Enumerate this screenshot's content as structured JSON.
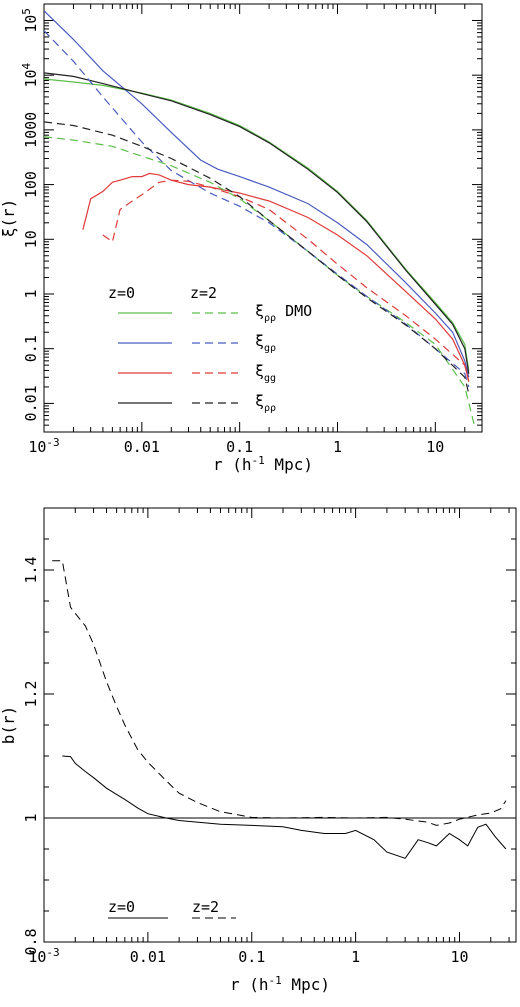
{
  "chart_data": [
    {
      "type": "line",
      "xlabel": "r (h⁻¹ Mpc)",
      "ylabel": "ξ(r)",
      "xscale": "log",
      "yscale": "log",
      "xlim": [
        0.001,
        30
      ],
      "ylim": [
        0.003,
        200000
      ],
      "x_ticks": [
        "10⁻³",
        "0.01",
        "0.1",
        "1",
        "10"
      ],
      "y_ticks": [
        "0.01",
        "0.1",
        "1",
        "10",
        "100",
        "1000",
        "10⁴",
        "10⁵"
      ],
      "legend": {
        "placement": "bottom-left",
        "column_headers": [
          "z=0",
          "z=2"
        ],
        "entries": [
          {
            "label": "ξ",
            "sub": "ρρ",
            "suffix": " DMO",
            "color": "#5cbf4a"
          },
          {
            "label": "ξ",
            "sub": "gρ",
            "suffix": "",
            "color": "#4a5cc0"
          },
          {
            "label": "ξ",
            "sub": "gg",
            "suffix": "",
            "color": "#e03a3a"
          },
          {
            "label": "ξ",
            "sub": "ρρ",
            "suffix": "",
            "color": "#222222"
          }
        ]
      },
      "series": [
        {
          "color": "#5cbf4a",
          "dash": false,
          "points": [
            [
              0.001,
              8500
            ],
            [
              0.002,
              7500
            ],
            [
              0.004,
              6500
            ],
            [
              0.01,
              4700
            ],
            [
              0.02,
              3500
            ],
            [
              0.05,
              2000
            ],
            [
              0.1,
              1200
            ],
            [
              0.2,
              600
            ],
            [
              0.5,
              200
            ],
            [
              1,
              75
            ],
            [
              2,
              22
            ],
            [
              5,
              2.8
            ],
            [
              10,
              0.7
            ],
            [
              15,
              0.3
            ],
            [
              20,
              0.12
            ],
            [
              22,
              0.04
            ]
          ]
        },
        {
          "color": "#4a5cc0",
          "dash": false,
          "points": [
            [
              0.001,
              150000
            ],
            [
              0.002,
              45000
            ],
            [
              0.004,
              12000
            ],
            [
              0.01,
              3000
            ],
            [
              0.02,
              900
            ],
            [
              0.04,
              280
            ],
            [
              0.06,
              190
            ],
            [
              0.1,
              140
            ],
            [
              0.2,
              90
            ],
            [
              0.5,
              45
            ],
            [
              1,
              20
            ],
            [
              2,
              8
            ],
            [
              5,
              1.6
            ],
            [
              10,
              0.45
            ],
            [
              15,
              0.2
            ],
            [
              20,
              0.06
            ],
            [
              22,
              0.03
            ]
          ]
        },
        {
          "color": "#e03a3a",
          "dash": false,
          "points": [
            [
              0.0025,
              15
            ],
            [
              0.003,
              55
            ],
            [
              0.004,
              75
            ],
            [
              0.005,
              110
            ],
            [
              0.006,
              120
            ],
            [
              0.008,
              140
            ],
            [
              0.01,
              140
            ],
            [
              0.012,
              160
            ],
            [
              0.015,
              150
            ],
            [
              0.02,
              120
            ],
            [
              0.03,
              100
            ],
            [
              0.05,
              90
            ],
            [
              0.1,
              70
            ],
            [
              0.2,
              50
            ],
            [
              0.5,
              25
            ],
            [
              1,
              12
            ],
            [
              2,
              5
            ],
            [
              5,
              1.1
            ],
            [
              10,
              0.35
            ],
            [
              15,
              0.15
            ],
            [
              20,
              0.05
            ],
            [
              22,
              0.025
            ]
          ]
        },
        {
          "color": "#222222",
          "dash": false,
          "points": [
            [
              0.001,
              11000
            ],
            [
              0.002,
              9500
            ],
            [
              0.004,
              7000
            ],
            [
              0.01,
              4600
            ],
            [
              0.02,
              3400
            ],
            [
              0.05,
              1900
            ],
            [
              0.1,
              1150
            ],
            [
              0.2,
              580
            ],
            [
              0.5,
              190
            ],
            [
              1,
              72
            ],
            [
              2,
              21
            ],
            [
              5,
              2.7
            ],
            [
              10,
              0.65
            ],
            [
              15,
              0.28
            ],
            [
              20,
              0.1
            ],
            [
              22,
              0.035
            ]
          ]
        },
        {
          "color": "#5cbf4a",
          "dash": true,
          "points": [
            [
              0.001,
              750
            ],
            [
              0.002,
              650
            ],
            [
              0.005,
              500
            ],
            [
              0.01,
              330
            ],
            [
              0.02,
              220
            ],
            [
              0.05,
              110
            ],
            [
              0.1,
              55
            ],
            [
              0.2,
              22
            ],
            [
              0.5,
              6
            ],
            [
              1,
              2.2
            ],
            [
              2,
              0.9
            ],
            [
              5,
              0.3
            ],
            [
              10,
              0.12
            ],
            [
              20,
              0.02
            ],
            [
              25,
              0.004
            ]
          ]
        },
        {
          "color": "#4a5cc0",
          "dash": true,
          "points": [
            [
              0.001,
              65000
            ],
            [
              0.002,
              18000
            ],
            [
              0.004,
              4000
            ],
            [
              0.01,
              600
            ],
            [
              0.02,
              180
            ],
            [
              0.05,
              70
            ],
            [
              0.1,
              40
            ],
            [
              0.2,
              20
            ],
            [
              0.5,
              6
            ],
            [
              1,
              2.3
            ],
            [
              2,
              0.9
            ],
            [
              5,
              0.28
            ],
            [
              10,
              0.1
            ],
            [
              20,
              0.035
            ],
            [
              22,
              0.02
            ]
          ]
        },
        {
          "color": "#e03a3a",
          "dash": true,
          "points": [
            [
              0.004,
              12
            ],
            [
              0.005,
              9
            ],
            [
              0.006,
              35
            ],
            [
              0.008,
              50
            ],
            [
              0.01,
              65
            ],
            [
              0.015,
              110
            ],
            [
              0.02,
              120
            ],
            [
              0.03,
              115
            ],
            [
              0.05,
              90
            ],
            [
              0.1,
              60
            ],
            [
              0.2,
              35
            ],
            [
              0.5,
              10
            ],
            [
              1,
              3.5
            ],
            [
              2,
              1.3
            ],
            [
              5,
              0.4
            ],
            [
              10,
              0.15
            ],
            [
              20,
              0.05
            ],
            [
              22,
              0.025
            ]
          ]
        },
        {
          "color": "#222222",
          "dash": true,
          "points": [
            [
              0.001,
              1400
            ],
            [
              0.002,
              1200
            ],
            [
              0.005,
              800
            ],
            [
              0.01,
              500
            ],
            [
              0.02,
              300
            ],
            [
              0.05,
              130
            ],
            [
              0.1,
              60
            ],
            [
              0.2,
              22
            ],
            [
              0.5,
              6
            ],
            [
              1,
              2.2
            ],
            [
              2,
              0.85
            ],
            [
              5,
              0.27
            ],
            [
              10,
              0.1
            ],
            [
              20,
              0.03
            ],
            [
              22,
              0.015
            ]
          ]
        }
      ]
    },
    {
      "type": "line",
      "xlabel": "r (h⁻¹ Mpc)",
      "ylabel": "b(r)",
      "xscale": "log",
      "xlim": [
        0.001,
        35
      ],
      "ylim": [
        0.8,
        1.5
      ],
      "x_ticks": [
        "10⁻³",
        "0.01",
        "0.1",
        "1",
        "10"
      ],
      "y_ticks": [
        "0.8",
        "1",
        "1.2",
        "1.4"
      ],
      "reference_line": 1,
      "legend": {
        "placement": "bottom-left",
        "entries": [
          {
            "label": "z=0",
            "dash": false
          },
          {
            "label": "z=2",
            "dash": true
          }
        ]
      },
      "series": [
        {
          "color": "#000000",
          "dash": false,
          "points": [
            [
              0.0015,
              1.1
            ],
            [
              0.0018,
              1.099
            ],
            [
              0.002,
              1.088
            ],
            [
              0.0025,
              1.075
            ],
            [
              0.003,
              1.065
            ],
            [
              0.004,
              1.048
            ],
            [
              0.005,
              1.038
            ],
            [
              0.006,
              1.03
            ],
            [
              0.008,
              1.016
            ],
            [
              0.01,
              1.007
            ],
            [
              0.015,
              1.0
            ],
            [
              0.02,
              0.996
            ],
            [
              0.05,
              0.99
            ],
            [
              0.1,
              0.988
            ],
            [
              0.2,
              0.986
            ],
            [
              0.3,
              0.98
            ],
            [
              0.5,
              0.975
            ],
            [
              0.8,
              0.975
            ],
            [
              1,
              0.98
            ],
            [
              1.5,
              0.965
            ],
            [
              2,
              0.945
            ],
            [
              3,
              0.935
            ],
            [
              4,
              0.965
            ],
            [
              5,
              0.96
            ],
            [
              6,
              0.955
            ],
            [
              8,
              0.975
            ],
            [
              10,
              0.965
            ],
            [
              12,
              0.955
            ],
            [
              15,
              0.985
            ],
            [
              18,
              0.99
            ],
            [
              22,
              0.97
            ],
            [
              28,
              0.95
            ]
          ]
        },
        {
          "color": "#000000",
          "dash": true,
          "points": [
            [
              0.0012,
              1.415
            ],
            [
              0.0015,
              1.415
            ],
            [
              0.0018,
              1.34
            ],
            [
              0.002,
              1.33
            ],
            [
              0.0025,
              1.31
            ],
            [
              0.003,
              1.28
            ],
            [
              0.004,
              1.22
            ],
            [
              0.005,
              1.18
            ],
            [
              0.006,
              1.15
            ],
            [
              0.008,
              1.11
            ],
            [
              0.01,
              1.09
            ],
            [
              0.015,
              1.06
            ],
            [
              0.02,
              1.04
            ],
            [
              0.03,
              1.025
            ],
            [
              0.05,
              1.01
            ],
            [
              0.08,
              1.004
            ],
            [
              0.1,
              1.001
            ],
            [
              0.2,
              1.0
            ],
            [
              0.5,
              1.001
            ],
            [
              1,
              1.0
            ],
            [
              2,
              1.001
            ],
            [
              3,
              0.998
            ],
            [
              5,
              0.993
            ],
            [
              6,
              0.988
            ],
            [
              8,
              0.992
            ],
            [
              10,
              0.998
            ],
            [
              15,
              1.005
            ],
            [
              20,
              1.008
            ],
            [
              25,
              1.015
            ],
            [
              28,
              1.028
            ]
          ]
        }
      ]
    }
  ]
}
